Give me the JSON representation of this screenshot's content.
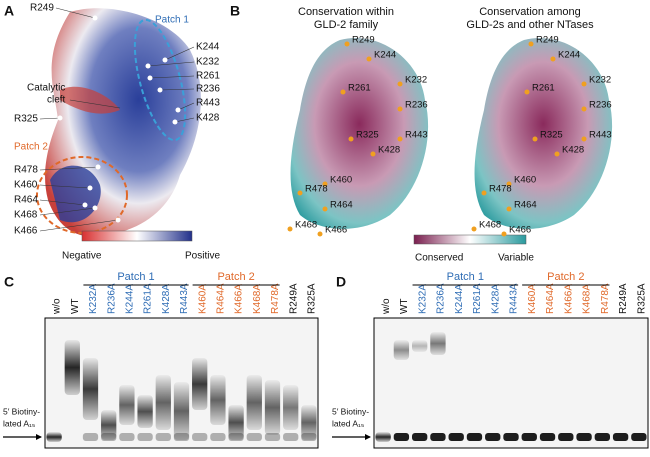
{
  "panel_a": {
    "letter": "A",
    "residues": [
      "R249",
      "K244",
      "K232",
      "R261",
      "R236",
      "R443",
      "K428",
      "R325",
      "R478",
      "K460",
      "R464",
      "K468",
      "K466"
    ],
    "patch_1": "Patch 1",
    "patch_2": "Patch 2",
    "cleft": [
      "Catalytic",
      "cleft"
    ],
    "colorbar": {
      "low": "Negative",
      "high": "Positive"
    }
  },
  "panel_b": {
    "letter": "B",
    "titles": [
      [
        "Conservation within",
        "GLD-2 family"
      ],
      [
        "Conservation among",
        "GLD-2s and other NTases"
      ]
    ],
    "residues": [
      "R249",
      "K244",
      "K232",
      "R261",
      "R236",
      "R325",
      "R443",
      "K428",
      "K460",
      "R478",
      "R464",
      "K468",
      "K466"
    ],
    "colorbar": {
      "low": "Conserved",
      "high": "Variable"
    }
  },
  "panel_c": {
    "letter": "C"
  },
  "panel_d": {
    "letter": "D"
  },
  "gel": {
    "lanes": [
      "w/o",
      "WT",
      "K232A",
      "R236A",
      "K244A",
      "R261A",
      "K428A",
      "R443A",
      "K460A",
      "R464A",
      "K466A",
      "K468A",
      "R478A",
      "R249A",
      "R325A"
    ],
    "patch_1": "Patch 1",
    "patch_2": "Patch 2",
    "substrate": [
      "5′ Biotiny-",
      "lated A₁₅"
    ]
  }
}
